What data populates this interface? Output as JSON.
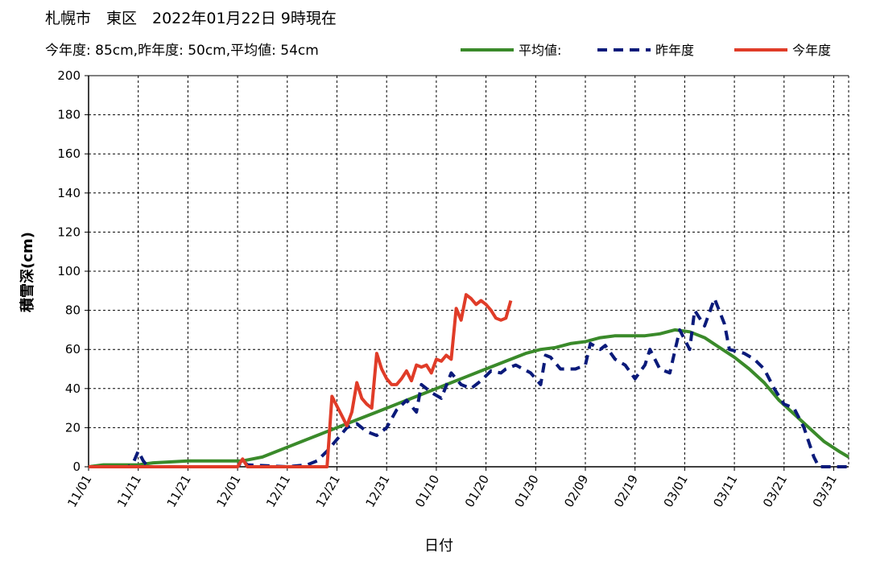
{
  "header": {
    "title": "札幌市　東区　2022年01月22日 9時現在",
    "summary": "今年度: 85cm,昨年度: 50cm,平均値: 54cm"
  },
  "chart_data": {
    "type": "line",
    "title": "札幌市　東区　2022年01月22日 9時現在",
    "subtitle": "今年度: 85cm,昨年度: 50cm,平均値: 54cm",
    "xlabel": "日付",
    "ylabel": "積雪深(cm)",
    "ylim": [
      0,
      200
    ],
    "yticks": [
      0,
      20,
      40,
      60,
      80,
      100,
      120,
      140,
      160,
      180,
      200
    ],
    "xlim_days": [
      0,
      153
    ],
    "xtick_labels": [
      "11/01",
      "11/11",
      "11/21",
      "12/01",
      "12/11",
      "12/21",
      "12/31",
      "01/10",
      "01/20",
      "01/30",
      "02/09",
      "02/19",
      "03/01",
      "03/11",
      "03/21",
      "03/31"
    ],
    "grid": true,
    "legend": "top-right",
    "series": [
      {
        "name": "平均値:",
        "color": "#3a8a2a",
        "style": "solid",
        "points": [
          [
            0,
            0
          ],
          [
            3,
            1
          ],
          [
            10,
            1
          ],
          [
            13,
            2
          ],
          [
            20,
            3
          ],
          [
            25,
            3
          ],
          [
            31,
            3
          ],
          [
            35,
            5
          ],
          [
            40,
            10
          ],
          [
            43,
            13
          ],
          [
            46,
            16
          ],
          [
            49,
            19
          ],
          [
            52,
            22
          ],
          [
            55,
            25
          ],
          [
            58,
            28
          ],
          [
            61,
            31
          ],
          [
            64,
            34
          ],
          [
            67,
            37
          ],
          [
            70,
            40
          ],
          [
            73,
            43
          ],
          [
            76,
            46
          ],
          [
            79,
            49
          ],
          [
            82,
            52
          ],
          [
            85,
            55
          ],
          [
            88,
            58
          ],
          [
            91,
            60
          ],
          [
            94,
            61
          ],
          [
            97,
            63
          ],
          [
            100,
            64
          ],
          [
            103,
            66
          ],
          [
            106,
            67
          ],
          [
            109,
            67
          ],
          [
            112,
            67
          ],
          [
            115,
            68
          ],
          [
            118,
            70
          ],
          [
            121,
            69
          ],
          [
            124,
            66
          ],
          [
            127,
            61
          ],
          [
            130,
            56
          ],
          [
            133,
            50
          ],
          [
            136,
            43
          ],
          [
            139,
            34
          ],
          [
            142,
            27
          ],
          [
            145,
            20
          ],
          [
            148,
            13
          ],
          [
            151,
            8
          ],
          [
            153,
            5
          ]
        ]
      },
      {
        "name": "昨年度",
        "color": "#0a1a7a",
        "style": "dashed",
        "points": [
          [
            0,
            0
          ],
          [
            8,
            0
          ],
          [
            9,
            2
          ],
          [
            10,
            8
          ],
          [
            11,
            3
          ],
          [
            12,
            0
          ],
          [
            30,
            0
          ],
          [
            31,
            3
          ],
          [
            32,
            1
          ],
          [
            40,
            0
          ],
          [
            44,
            1
          ],
          [
            46,
            3
          ],
          [
            48,
            8
          ],
          [
            50,
            14
          ],
          [
            52,
            20
          ],
          [
            54,
            22
          ],
          [
            56,
            18
          ],
          [
            58,
            16
          ],
          [
            60,
            20
          ],
          [
            62,
            29
          ],
          [
            64,
            34
          ],
          [
            66,
            28
          ],
          [
            67,
            42
          ],
          [
            69,
            38
          ],
          [
            71,
            35
          ],
          [
            73,
            48
          ],
          [
            75,
            42
          ],
          [
            77,
            40
          ],
          [
            79,
            44
          ],
          [
            81,
            49
          ],
          [
            83,
            48
          ],
          [
            84,
            50
          ],
          [
            86,
            52
          ],
          [
            89,
            48
          ],
          [
            90,
            45
          ],
          [
            91,
            42
          ],
          [
            92,
            57
          ],
          [
            93,
            56
          ],
          [
            95,
            50
          ],
          [
            98,
            50
          ],
          [
            100,
            52
          ],
          [
            101,
            63
          ],
          [
            103,
            60
          ],
          [
            104,
            62
          ],
          [
            106,
            55
          ],
          [
            108,
            52
          ],
          [
            110,
            45
          ],
          [
            112,
            52
          ],
          [
            113,
            60
          ],
          [
            115,
            50
          ],
          [
            117,
            48
          ],
          [
            119,
            70
          ],
          [
            121,
            60
          ],
          [
            122,
            80
          ],
          [
            124,
            72
          ],
          [
            126,
            86
          ],
          [
            128,
            73
          ],
          [
            129,
            60
          ],
          [
            132,
            58
          ],
          [
            134,
            55
          ],
          [
            136,
            50
          ],
          [
            138,
            40
          ],
          [
            140,
            32
          ],
          [
            142,
            30
          ],
          [
            144,
            20
          ],
          [
            146,
            5
          ],
          [
            147,
            0
          ],
          [
            150,
            0
          ],
          [
            153,
            0
          ]
        ]
      },
      {
        "name": "今年度",
        "color": "#e03c28",
        "style": "solid",
        "points": [
          [
            0,
            0
          ],
          [
            30,
            0
          ],
          [
            31,
            4
          ],
          [
            32,
            0
          ],
          [
            45,
            0
          ],
          [
            48,
            0
          ],
          [
            49,
            36
          ],
          [
            50,
            31
          ],
          [
            51,
            26
          ],
          [
            52,
            21
          ],
          [
            53,
            28
          ],
          [
            54,
            43
          ],
          [
            55,
            35
          ],
          [
            56,
            32
          ],
          [
            57,
            30
          ],
          [
            58,
            58
          ],
          [
            59,
            50
          ],
          [
            60,
            45
          ],
          [
            61,
            42
          ],
          [
            62,
            42
          ],
          [
            63,
            45
          ],
          [
            64,
            49
          ],
          [
            65,
            44
          ],
          [
            66,
            52
          ],
          [
            67,
            51
          ],
          [
            68,
            52
          ],
          [
            69,
            48
          ],
          [
            70,
            55
          ],
          [
            71,
            54
          ],
          [
            72,
            57
          ],
          [
            73,
            55
          ],
          [
            74,
            81
          ],
          [
            75,
            75
          ],
          [
            76,
            88
          ],
          [
            77,
            86
          ],
          [
            78,
            83
          ],
          [
            79,
            85
          ],
          [
            80,
            83
          ],
          [
            81,
            80
          ],
          [
            82,
            76
          ],
          [
            83,
            75
          ],
          [
            84,
            76
          ],
          [
            85,
            85
          ]
        ]
      }
    ]
  }
}
